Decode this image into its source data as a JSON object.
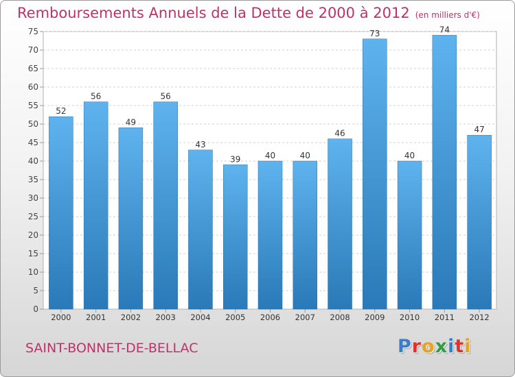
{
  "chart_data": {
    "type": "bar",
    "title": "Remboursements Annuels de la Dette de 2000 à 2012",
    "subtitle": "(en milliers d'€)",
    "categories": [
      "2000",
      "2001",
      "2002",
      "2003",
      "2004",
      "2005",
      "2006",
      "2007",
      "2008",
      "2009",
      "2010",
      "2011",
      "2012"
    ],
    "values": [
      52,
      56,
      49,
      56,
      43,
      39,
      40,
      40,
      46,
      73,
      40,
      74,
      47
    ],
    "ylim": [
      0,
      75
    ],
    "yticks": [
      0,
      5,
      10,
      15,
      20,
      25,
      30,
      35,
      40,
      45,
      50,
      55,
      60,
      65,
      70,
      75
    ],
    "grid": true,
    "bar_color": "#4a9fe0",
    "title_color": "#c0306a"
  },
  "commune": "SAINT-BONNET-DE-BELLAC",
  "logo": {
    "text": "Proxiti",
    "letter_colors": [
      "#3a7dc8",
      "#e0322a",
      "#e8a21c",
      "#2f9e44",
      "#3a7dc8",
      "#e0322a",
      "#e8a21c"
    ]
  }
}
